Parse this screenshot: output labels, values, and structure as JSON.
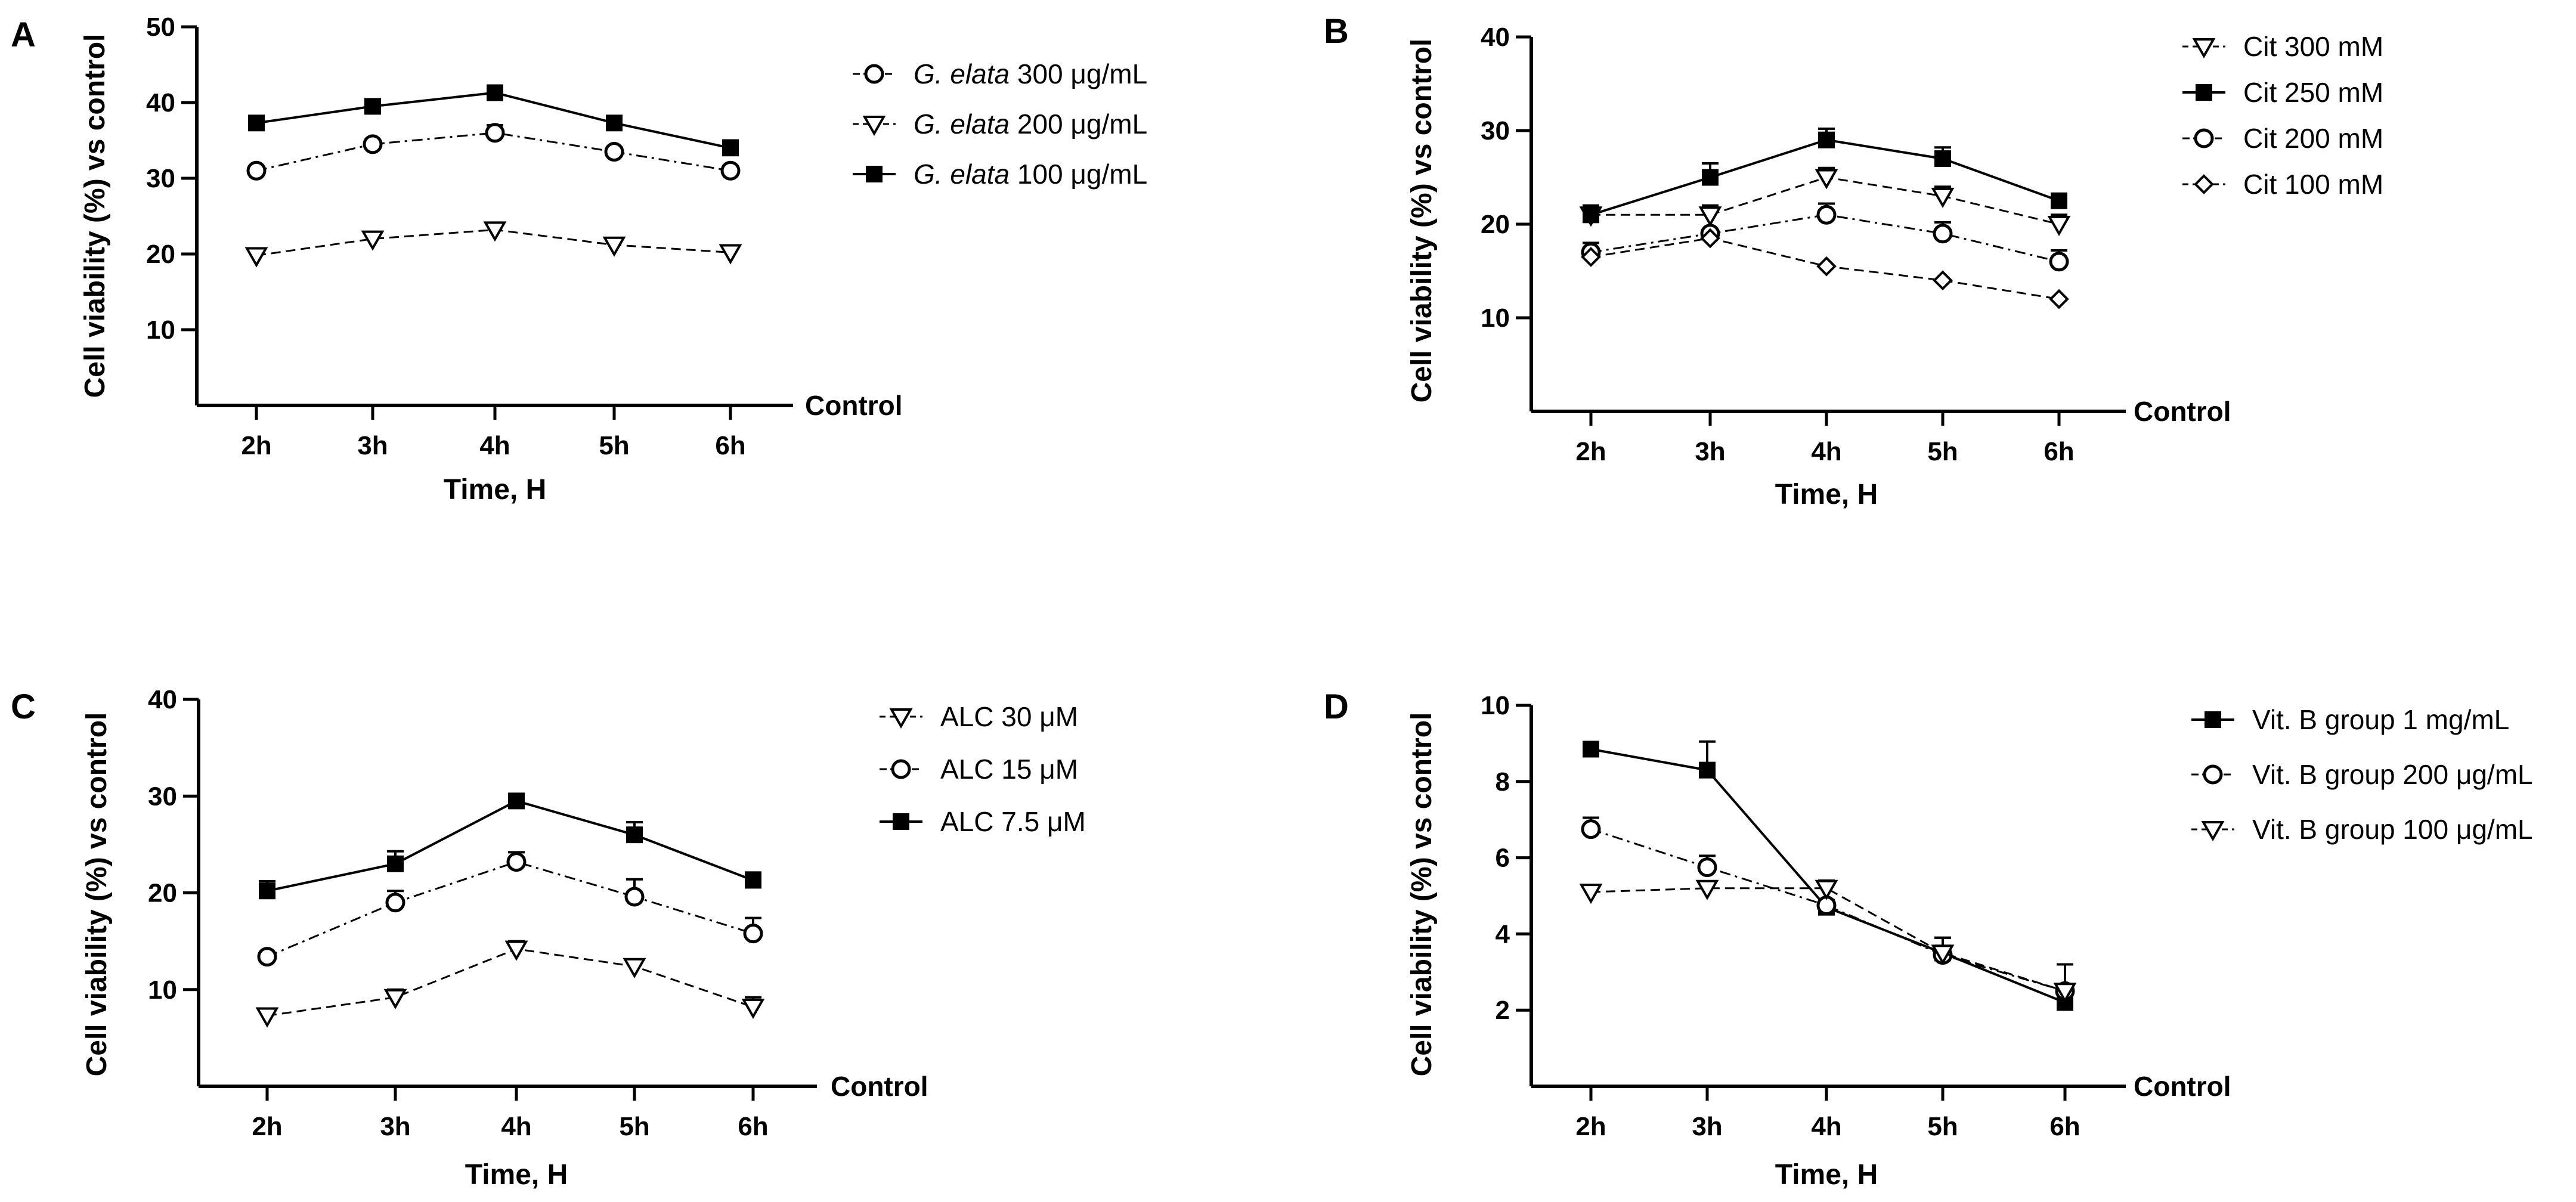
{
  "chart_data": [
    {
      "panel": "A",
      "type": "line",
      "xlabel": "Time, H",
      "ylabel": "Cell viability (%) vs control",
      "x_axis_end_label": "Control",
      "categories": [
        "2h",
        "3h",
        "4h",
        "5h",
        "6h"
      ],
      "ylim": [
        0,
        50
      ],
      "yticks": [
        10,
        20,
        30,
        40,
        50
      ],
      "series": [
        {
          "name_italic": "G. elata",
          "name_rest": " 300 μg/mL",
          "marker": "circle",
          "line": "dashdot",
          "values": [
            31,
            34.5,
            36,
            33.5,
            31
          ],
          "errors": [
            0,
            0,
            1,
            0,
            0.6
          ]
        },
        {
          "name_italic": "G. elata",
          "name_rest": " 200 μg/mL",
          "marker": "triangle",
          "line": "dashed",
          "values": [
            19.8,
            22,
            23.2,
            21.2,
            20.2
          ],
          "errors": [
            0,
            0,
            0.5,
            0,
            0
          ]
        },
        {
          "name_italic": "G. elata",
          "name_rest": " 100 μg/mL",
          "marker": "square",
          "line": "solid",
          "values": [
            37.3,
            39.5,
            41.3,
            37.3,
            34
          ],
          "errors": [
            0,
            0,
            0,
            0,
            1
          ]
        }
      ]
    },
    {
      "panel": "B",
      "type": "line",
      "xlabel": "Time, H",
      "ylabel": "Cell viability (%) vs control",
      "x_axis_end_label": "Control",
      "categories": [
        "2h",
        "3h",
        "4h",
        "5h",
        "6h"
      ],
      "ylim": [
        0,
        40
      ],
      "yticks": [
        10,
        20,
        30,
        40
      ],
      "series": [
        {
          "name_italic": "",
          "name_rest": "Cit 300 mM",
          "marker": "triangle",
          "line": "dashed",
          "values": [
            21,
            21,
            25,
            23,
            20
          ],
          "errors": [
            0,
            1,
            1,
            1,
            1
          ]
        },
        {
          "name_italic": "",
          "name_rest": "Cit 250 mM",
          "marker": "square",
          "line": "solid",
          "values": [
            21,
            25,
            29,
            27,
            22.5
          ],
          "errors": [
            1,
            1.5,
            1.2,
            1.2,
            0
          ]
        },
        {
          "name_italic": "",
          "name_rest": "Cit 200 mM",
          "marker": "circle",
          "line": "dashdot",
          "values": [
            17,
            19,
            21,
            19,
            16
          ],
          "errors": [
            1,
            0,
            1.2,
            1.2,
            1.2
          ]
        },
        {
          "name_italic": "",
          "name_rest": "Cit 100 mM",
          "marker": "diamond",
          "line": "dashed",
          "values": [
            16.5,
            18.5,
            15.5,
            14,
            12
          ],
          "errors": [
            0,
            0,
            0,
            0,
            0
          ]
        }
      ]
    },
    {
      "panel": "C",
      "type": "line",
      "xlabel": "Time, H",
      "ylabel": "Cell viability (%) vs control",
      "x_axis_end_label": "Control",
      "categories": [
        "2h",
        "3h",
        "4h",
        "5h",
        "6h"
      ],
      "ylim": [
        0,
        40
      ],
      "yticks": [
        10,
        20,
        30,
        40
      ],
      "series": [
        {
          "name_italic": "",
          "name_rest": "ALC 30 μM",
          "marker": "triangle",
          "line": "dashed",
          "values": [
            7.3,
            9.2,
            14.2,
            12.4,
            8.2
          ],
          "errors": [
            0.5,
            0.8,
            0.8,
            0,
            1
          ]
        },
        {
          "name_italic": "",
          "name_rest": "ALC 15 μM",
          "marker": "circle",
          "line": "dashdot",
          "values": [
            13.4,
            19,
            23.2,
            19.6,
            15.8
          ],
          "errors": [
            0,
            1.2,
            1,
            1.8,
            1.6
          ]
        },
        {
          "name_italic": "",
          "name_rest": "ALC 7.5 μM",
          "marker": "square",
          "line": "solid",
          "values": [
            20.2,
            23,
            29.5,
            26,
            21.3
          ],
          "errors": [
            1,
            1.3,
            0,
            1.3,
            0.8
          ]
        }
      ]
    },
    {
      "panel": "D",
      "type": "line",
      "xlabel": "Time, H",
      "ylabel": "Cell viability (%) vs control",
      "x_axis_end_label": "Control",
      "categories": [
        "2h",
        "3h",
        "4h",
        "5h",
        "6h"
      ],
      "ylim": [
        0,
        10
      ],
      "yticks": [
        2,
        4,
        6,
        8,
        10
      ],
      "series": [
        {
          "name_italic": "",
          "name_rest": "Vit. B group 1 mg/mL",
          "marker": "square",
          "line": "solid",
          "values": [
            8.85,
            8.3,
            4.7,
            3.5,
            2.2
          ],
          "errors": [
            0,
            0.75,
            0,
            0.4,
            1
          ]
        },
        {
          "name_italic": "",
          "name_rest": "Vit. B group 200 μg/mL",
          "marker": "circle",
          "line": "dashdot",
          "values": [
            6.75,
            5.75,
            4.75,
            3.45,
            2.5
          ],
          "errors": [
            0.3,
            0.3,
            0,
            0,
            0
          ]
        },
        {
          "name_italic": "",
          "name_rest": "Vit. B group 100 μg/mL",
          "marker": "triangle",
          "line": "dashed",
          "values": [
            5.1,
            5.2,
            5.2,
            3.5,
            2.5
          ],
          "errors": [
            0,
            0,
            0.2,
            0.4,
            0
          ]
        }
      ]
    }
  ]
}
